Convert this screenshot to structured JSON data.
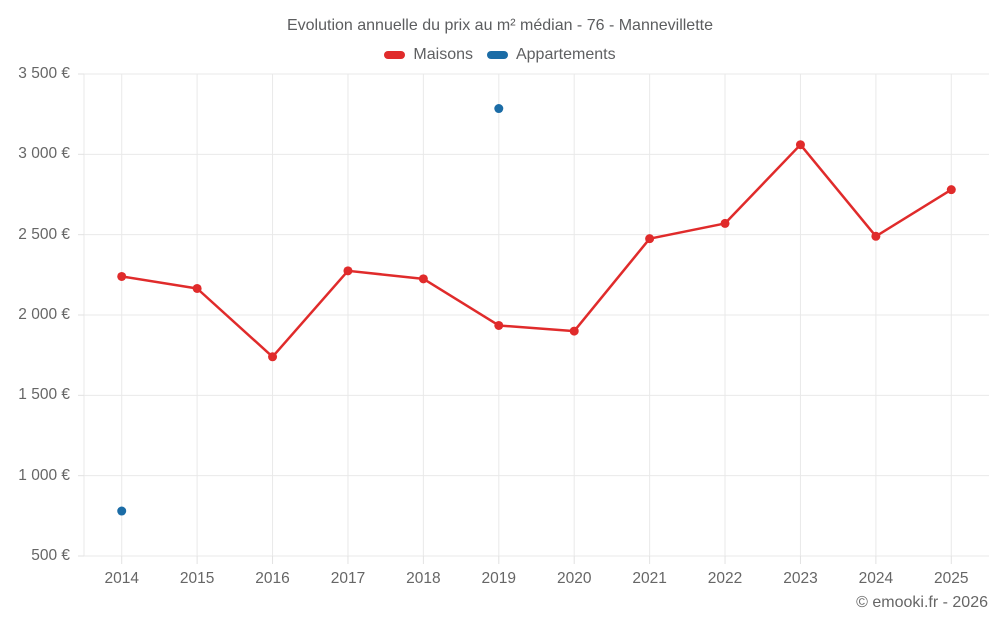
{
  "title": "Evolution annuelle du prix au m² médian - 76 - Mannevillette",
  "legend": {
    "items": [
      {
        "label": "Maisons",
        "color": "#e02b2b"
      },
      {
        "label": "Appartements",
        "color": "#1b6ca6"
      }
    ]
  },
  "footer": {
    "copyright": "© emooki.fr - 2026"
  },
  "colors": {
    "grid": "#e9e9e9",
    "tick": "#e2e2e2",
    "axis_text": "#666666"
  },
  "chart_data": {
    "type": "line",
    "title": "Evolution annuelle du prix au m² médian - 76 - Mannevillette",
    "categories": [
      "2014",
      "2015",
      "2016",
      "2017",
      "2018",
      "2019",
      "2020",
      "2021",
      "2022",
      "2023",
      "2024",
      "2025"
    ],
    "series": [
      {
        "name": "Maisons",
        "color": "#e02b2b",
        "draw": "line+points",
        "values": [
          2240,
          2165,
          1740,
          2275,
          2225,
          1935,
          1900,
          2475,
          2570,
          3060,
          2490,
          2780
        ]
      },
      {
        "name": "Appartements",
        "color": "#1b6ca6",
        "draw": "points",
        "values": [
          780,
          null,
          null,
          null,
          null,
          3285,
          null,
          null,
          null,
          null,
          null,
          null
        ]
      }
    ],
    "xlabel": "",
    "ylabel": "",
    "ylim": [
      500,
      3500
    ],
    "ytick_step": 500,
    "ytick_labels": [
      "500 €",
      "1 000 €",
      "1 500 €",
      "2 000 €",
      "2 500 €",
      "3 000 €",
      "3 500 €"
    ],
    "currency": "€",
    "grid": true,
    "legend_position": "top"
  }
}
